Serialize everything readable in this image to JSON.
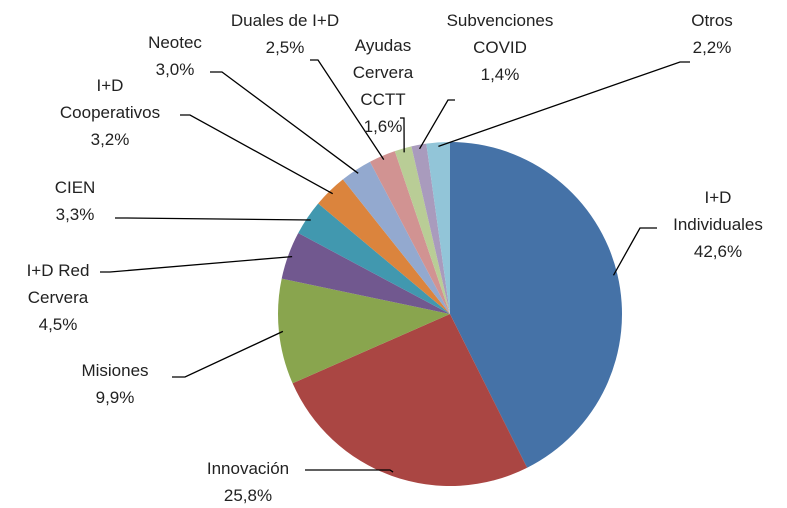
{
  "chart_data": {
    "type": "pie",
    "categories": [
      "I+D Individuales",
      "Innovación",
      "Misiones",
      "I+D Red Cervera",
      "CIEN",
      "I+D Cooperativos",
      "Neotec",
      "Duales de I+D",
      "Ayudas Cervera CCTT",
      "Subvenciones COVID",
      "Otros"
    ],
    "values": [
      42.6,
      25.8,
      9.9,
      4.5,
      3.3,
      3.2,
      3.0,
      2.5,
      1.6,
      1.4,
      2.2
    ],
    "value_labels": [
      "42,6%",
      "25,8%",
      "9,9%",
      "4,5%",
      "3,3%",
      "3,2%",
      "3,0%",
      "2,5%",
      "1,6%",
      "1,4%",
      "2,2%"
    ],
    "colors": [
      "#4572a7",
      "#aa4643",
      "#89a54e",
      "#71588f",
      "#4198af",
      "#db843d",
      "#93a9cf",
      "#d19392",
      "#b9cd96",
      "#a99bbd",
      "#92c5d8"
    ]
  }
}
